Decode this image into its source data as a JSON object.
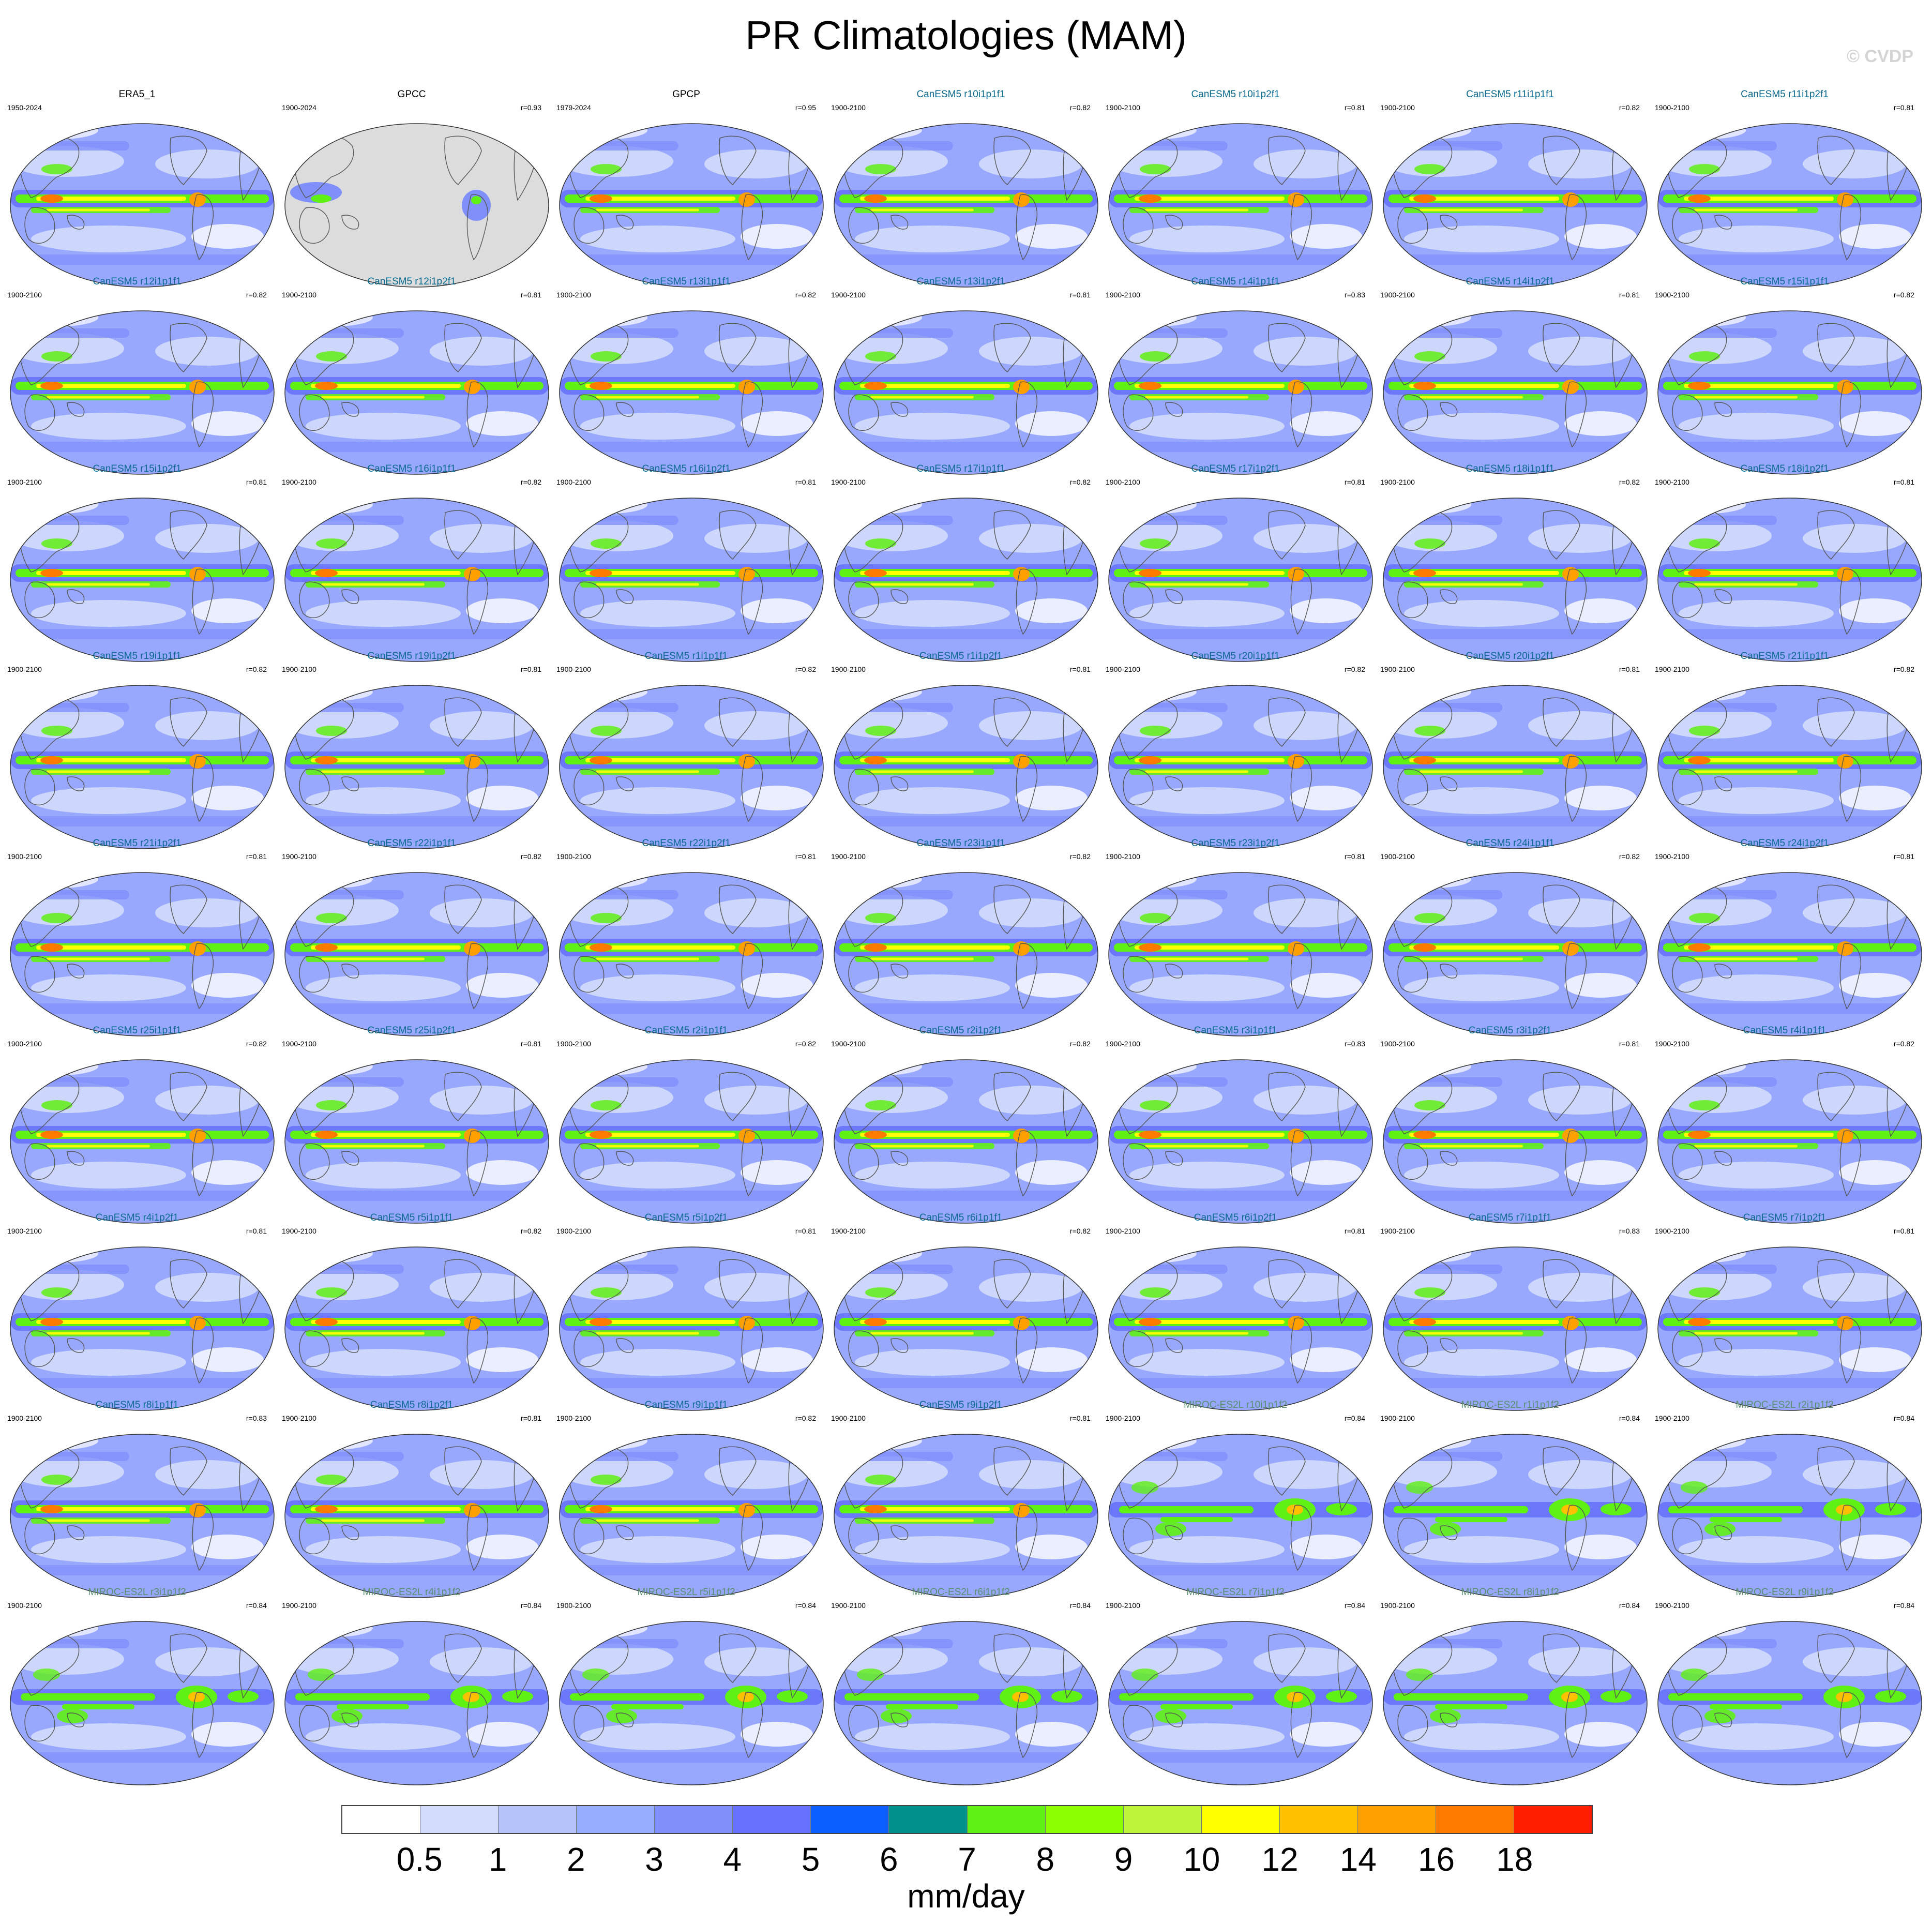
{
  "title": "PR Climatologies (MAM)",
  "watermark": "© CVDP",
  "colors": {
    "obs_title": "#000000",
    "canesm5_title": "#0a6a8e",
    "miroc_title": "#5a8f70",
    "ocean_fill": "#99a8ff",
    "land_outline": "#555555",
    "missing_fill": "#dcdcdc"
  },
  "panels": [
    {
      "title": "ERA5_1",
      "left": "1950-2024",
      "right": "",
      "group": "obs"
    },
    {
      "title": "GPCC",
      "left": "1900-2024",
      "right": "r=0.93",
      "group": "gpcc"
    },
    {
      "title": "GPCP",
      "left": "1979-2024",
      "right": "r=0.95",
      "group": "obs"
    },
    {
      "title": "CanESM5 r10i1p1f1",
      "left": "1900-2100",
      "right": "r=0.82",
      "group": "canesm5"
    },
    {
      "title": "CanESM5 r10i1p2f1",
      "left": "1900-2100",
      "right": "r=0.81",
      "group": "canesm5"
    },
    {
      "title": "CanESM5 r11i1p1f1",
      "left": "1900-2100",
      "right": "r=0.82",
      "group": "canesm5"
    },
    {
      "title": "CanESM5 r11i1p2f1",
      "left": "1900-2100",
      "right": "r=0.81",
      "group": "canesm5"
    },
    {
      "title": "CanESM5 r12i1p1f1",
      "left": "1900-2100",
      "right": "r=0.82",
      "group": "canesm5"
    },
    {
      "title": "CanESM5 r12i1p2f1",
      "left": "1900-2100",
      "right": "r=0.81",
      "group": "canesm5"
    },
    {
      "title": "CanESM5 r13i1p1f1",
      "left": "1900-2100",
      "right": "r=0.82",
      "group": "canesm5"
    },
    {
      "title": "CanESM5 r13i1p2f1",
      "left": "1900-2100",
      "right": "r=0.81",
      "group": "canesm5"
    },
    {
      "title": "CanESM5 r14i1p1f1",
      "left": "1900-2100",
      "right": "r=0.83",
      "group": "canesm5"
    },
    {
      "title": "CanESM5 r14i1p2f1",
      "left": "1900-2100",
      "right": "r=0.81",
      "group": "canesm5"
    },
    {
      "title": "CanESM5 r15i1p1f1",
      "left": "1900-2100",
      "right": "r=0.82",
      "group": "canesm5"
    },
    {
      "title": "CanESM5 r15i1p2f1",
      "left": "1900-2100",
      "right": "r=0.81",
      "group": "canesm5"
    },
    {
      "title": "CanESM5 r16i1p1f1",
      "left": "1900-2100",
      "right": "r=0.82",
      "group": "canesm5"
    },
    {
      "title": "CanESM5 r16i1p2f1",
      "left": "1900-2100",
      "right": "r=0.81",
      "group": "canesm5"
    },
    {
      "title": "CanESM5 r17i1p1f1",
      "left": "1900-2100",
      "right": "r=0.82",
      "group": "canesm5"
    },
    {
      "title": "CanESM5 r17i1p2f1",
      "left": "1900-2100",
      "right": "r=0.81",
      "group": "canesm5"
    },
    {
      "title": "CanESM5 r18i1p1f1",
      "left": "1900-2100",
      "right": "r=0.82",
      "group": "canesm5"
    },
    {
      "title": "CanESM5 r18i1p2f1",
      "left": "1900-2100",
      "right": "r=0.81",
      "group": "canesm5"
    },
    {
      "title": "CanESM5 r19i1p1f1",
      "left": "1900-2100",
      "right": "r=0.82",
      "group": "canesm5"
    },
    {
      "title": "CanESM5 r19i1p2f1",
      "left": "1900-2100",
      "right": "r=0.81",
      "group": "canesm5"
    },
    {
      "title": "CanESM5 r1i1p1f1",
      "left": "1900-2100",
      "right": "r=0.82",
      "group": "canesm5"
    },
    {
      "title": "CanESM5 r1i1p2f1",
      "left": "1900-2100",
      "right": "r=0.81",
      "group": "canesm5"
    },
    {
      "title": "CanESM5 r20i1p1f1",
      "left": "1900-2100",
      "right": "r=0.82",
      "group": "canesm5"
    },
    {
      "title": "CanESM5 r20i1p2f1",
      "left": "1900-2100",
      "right": "r=0.81",
      "group": "canesm5"
    },
    {
      "title": "CanESM5 r21i1p1f1",
      "left": "1900-2100",
      "right": "r=0.82",
      "group": "canesm5"
    },
    {
      "title": "CanESM5 r21i1p2f1",
      "left": "1900-2100",
      "right": "r=0.81",
      "group": "canesm5"
    },
    {
      "title": "CanESM5 r22i1p1f1",
      "left": "1900-2100",
      "right": "r=0.82",
      "group": "canesm5"
    },
    {
      "title": "CanESM5 r22i1p2f1",
      "left": "1900-2100",
      "right": "r=0.81",
      "group": "canesm5"
    },
    {
      "title": "CanESM5 r23i1p1f1",
      "left": "1900-2100",
      "right": "r=0.82",
      "group": "canesm5"
    },
    {
      "title": "CanESM5 r23i1p2f1",
      "left": "1900-2100",
      "right": "r=0.81",
      "group": "canesm5"
    },
    {
      "title": "CanESM5 r24i1p1f1",
      "left": "1900-2100",
      "right": "r=0.82",
      "group": "canesm5"
    },
    {
      "title": "CanESM5 r24i1p2f1",
      "left": "1900-2100",
      "right": "r=0.81",
      "group": "canesm5"
    },
    {
      "title": "CanESM5 r25i1p1f1",
      "left": "1900-2100",
      "right": "r=0.82",
      "group": "canesm5"
    },
    {
      "title": "CanESM5 r25i1p2f1",
      "left": "1900-2100",
      "right": "r=0.81",
      "group": "canesm5"
    },
    {
      "title": "CanESM5 r2i1p1f1",
      "left": "1900-2100",
      "right": "r=0.82",
      "group": "canesm5"
    },
    {
      "title": "CanESM5 r2i1p2f1",
      "left": "1900-2100",
      "right": "r=0.82",
      "group": "canesm5"
    },
    {
      "title": "CanESM5 r3i1p1f1",
      "left": "1900-2100",
      "right": "r=0.83",
      "group": "canesm5"
    },
    {
      "title": "CanESM5 r3i1p2f1",
      "left": "1900-2100",
      "right": "r=0.81",
      "group": "canesm5"
    },
    {
      "title": "CanESM5 r4i1p1f1",
      "left": "1900-2100",
      "right": "r=0.82",
      "group": "canesm5"
    },
    {
      "title": "CanESM5 r4i1p2f1",
      "left": "1900-2100",
      "right": "r=0.81",
      "group": "canesm5"
    },
    {
      "title": "CanESM5 r5i1p1f1",
      "left": "1900-2100",
      "right": "r=0.82",
      "group": "canesm5"
    },
    {
      "title": "CanESM5 r5i1p2f1",
      "left": "1900-2100",
      "right": "r=0.81",
      "group": "canesm5"
    },
    {
      "title": "CanESM5 r6i1p1f1",
      "left": "1900-2100",
      "right": "r=0.82",
      "group": "canesm5"
    },
    {
      "title": "CanESM5 r6i1p2f1",
      "left": "1900-2100",
      "right": "r=0.81",
      "group": "canesm5"
    },
    {
      "title": "CanESM5 r7i1p1f1",
      "left": "1900-2100",
      "right": "r=0.83",
      "group": "canesm5"
    },
    {
      "title": "CanESM5 r7i1p2f1",
      "left": "1900-2100",
      "right": "r=0.81",
      "group": "canesm5"
    },
    {
      "title": "CanESM5 r8i1p1f1",
      "left": "1900-2100",
      "right": "r=0.83",
      "group": "canesm5"
    },
    {
      "title": "CanESM5 r8i1p2f1",
      "left": "1900-2100",
      "right": "r=0.81",
      "group": "canesm5"
    },
    {
      "title": "CanESM5 r9i1p1f1",
      "left": "1900-2100",
      "right": "r=0.82",
      "group": "canesm5"
    },
    {
      "title": "CanESM5 r9i1p2f1",
      "left": "1900-2100",
      "right": "r=0.81",
      "group": "canesm5"
    },
    {
      "title": "MIROC-ES2L r10i1p1f2",
      "left": "1900-2100",
      "right": "r=0.84",
      "group": "miroc"
    },
    {
      "title": "MIROC-ES2L r1i1p1f2",
      "left": "1900-2100",
      "right": "r=0.84",
      "group": "miroc"
    },
    {
      "title": "MIROC-ES2L r2i1p1f2",
      "left": "1900-2100",
      "right": "r=0.84",
      "group": "miroc"
    },
    {
      "title": "MIROC-ES2L r3i1p1f2",
      "left": "1900-2100",
      "right": "r=0.84",
      "group": "miroc"
    },
    {
      "title": "MIROC-ES2L r4i1p1f2",
      "left": "1900-2100",
      "right": "r=0.84",
      "group": "miroc"
    },
    {
      "title": "MIROC-ES2L r5i1p1f2",
      "left": "1900-2100",
      "right": "r=0.84",
      "group": "miroc"
    },
    {
      "title": "MIROC-ES2L r6i1p1f2",
      "left": "1900-2100",
      "right": "r=0.84",
      "group": "miroc"
    },
    {
      "title": "MIROC-ES2L r7i1p1f2",
      "left": "1900-2100",
      "right": "r=0.84",
      "group": "miroc"
    },
    {
      "title": "MIROC-ES2L r8i1p1f2",
      "left": "1900-2100",
      "right": "r=0.84",
      "group": "miroc"
    },
    {
      "title": "MIROC-ES2L r9i1p1f2",
      "left": "1900-2100",
      "right": "r=0.84",
      "group": "miroc"
    }
  ],
  "colorbar": {
    "units": "mm/day",
    "labels": [
      "0.5",
      "1",
      "2",
      "3",
      "4",
      "5",
      "6",
      "7",
      "8",
      "9",
      "10",
      "12",
      "14",
      "16",
      "18"
    ],
    "colors": [
      "#ffffff",
      "#d2dbfb",
      "#b5c3fa",
      "#95acff",
      "#7f8ffc",
      "#6672fb",
      "#0a5ffd",
      "#00918c",
      "#5ff014",
      "#8cff00",
      "#bef53a",
      "#ffff00",
      "#ffc000",
      "#ffa000",
      "#ff7b00",
      "#ff1e00"
    ]
  }
}
